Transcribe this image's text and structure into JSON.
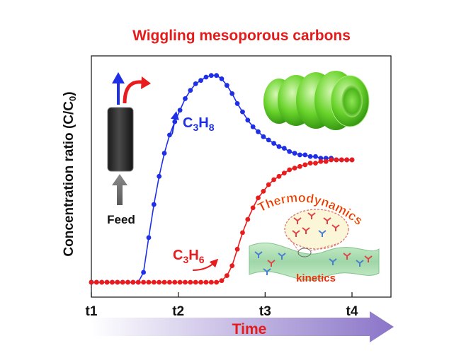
{
  "figure": {
    "title": "Wiggling mesoporous carbons",
    "feed_label": "Feed",
    "thermo_label": "Thermodynamics",
    "kinetics_label": "kinetics",
    "time_label": "Time"
  },
  "colors": {
    "title": "#e41b1b",
    "propane": "#1f2fe6",
    "propylene": "#e81c1c",
    "time_arrow_start": "#ffffff",
    "time_arrow_end": "#8a74c8",
    "carbon_tube": "#5fcf26"
  },
  "chart_data": {
    "type": "line",
    "ylabel": "Concentration ratio (C/C",
    "ylabel_sub": "0",
    "ylabel_end": ")",
    "xlabel": "Time",
    "x_ticks": [
      "t1",
      "t2",
      "t3",
      "t4"
    ],
    "xlim": [
      1.0,
      4.0
    ],
    "ylim": [
      0.0,
      1.27
    ],
    "grid": false,
    "series": [
      {
        "name": "C3H8",
        "label_main": "C",
        "label_sub1": "3",
        "label_mid": "H",
        "label_sub2": "8",
        "color": "#1f2fe6",
        "x": [
          1.0,
          1.06,
          1.12,
          1.18,
          1.24,
          1.3,
          1.36,
          1.42,
          1.48,
          1.54,
          1.6,
          1.66,
          1.72,
          1.78,
          1.84,
          1.9,
          1.96,
          2.02,
          2.08,
          2.14,
          2.2,
          2.26,
          2.32,
          2.38,
          2.44,
          2.5,
          2.56,
          2.62,
          2.68,
          2.74,
          2.8,
          2.86,
          2.92,
          2.98,
          3.04,
          3.1,
          3.16,
          3.22,
          3.28,
          3.34,
          3.4,
          3.46,
          3.52,
          3.58,
          3.64,
          3.7,
          3.76,
          3.82,
          3.88,
          3.94,
          4.0
        ],
        "y": [
          0.0,
          0.0,
          0.0,
          0.0,
          0.0,
          0.0,
          0.0,
          0.0,
          0.0,
          0.0,
          0.06,
          0.27,
          0.47,
          0.64,
          0.78,
          0.89,
          0.97,
          1.04,
          1.11,
          1.16,
          1.2,
          1.22,
          1.24,
          1.25,
          1.25,
          1.23,
          1.19,
          1.14,
          1.08,
          1.03,
          0.98,
          0.94,
          0.91,
          0.88,
          0.86,
          0.84,
          0.82,
          0.81,
          0.79,
          0.78,
          0.77,
          0.77,
          0.76,
          0.76,
          0.75,
          0.75,
          0.75,
          0.74,
          0.74,
          0.74,
          0.74
        ]
      },
      {
        "name": "C3H6",
        "label_main": "C",
        "label_sub1": "3",
        "label_mid": "H",
        "label_sub2": "6",
        "color": "#e81c1c",
        "x": [
          1.0,
          1.06,
          1.12,
          1.18,
          1.24,
          1.3,
          1.36,
          1.42,
          1.48,
          1.54,
          1.6,
          1.66,
          1.72,
          1.78,
          1.84,
          1.9,
          1.96,
          2.02,
          2.08,
          2.14,
          2.2,
          2.26,
          2.32,
          2.38,
          2.44,
          2.5,
          2.56,
          2.62,
          2.68,
          2.74,
          2.8,
          2.86,
          2.92,
          2.98,
          3.04,
          3.1,
          3.16,
          3.22,
          3.28,
          3.34,
          3.4,
          3.46,
          3.52,
          3.58,
          3.64,
          3.7,
          3.76,
          3.82,
          3.88,
          3.94,
          4.0
        ],
        "y": [
          0.0,
          0.0,
          0.0,
          0.0,
          0.0,
          0.0,
          0.0,
          0.0,
          0.0,
          0.0,
          0.0,
          0.0,
          0.0,
          0.0,
          0.0,
          0.0,
          0.0,
          0.0,
          0.0,
          0.0,
          0.0,
          0.0,
          0.0,
          0.0,
          0.0,
          0.01,
          0.04,
          0.1,
          0.2,
          0.3,
          0.38,
          0.45,
          0.51,
          0.55,
          0.59,
          0.62,
          0.64,
          0.66,
          0.68,
          0.69,
          0.7,
          0.71,
          0.72,
          0.72,
          0.73,
          0.73,
          0.74,
          0.74,
          0.74,
          0.74,
          0.74
        ]
      }
    ]
  }
}
